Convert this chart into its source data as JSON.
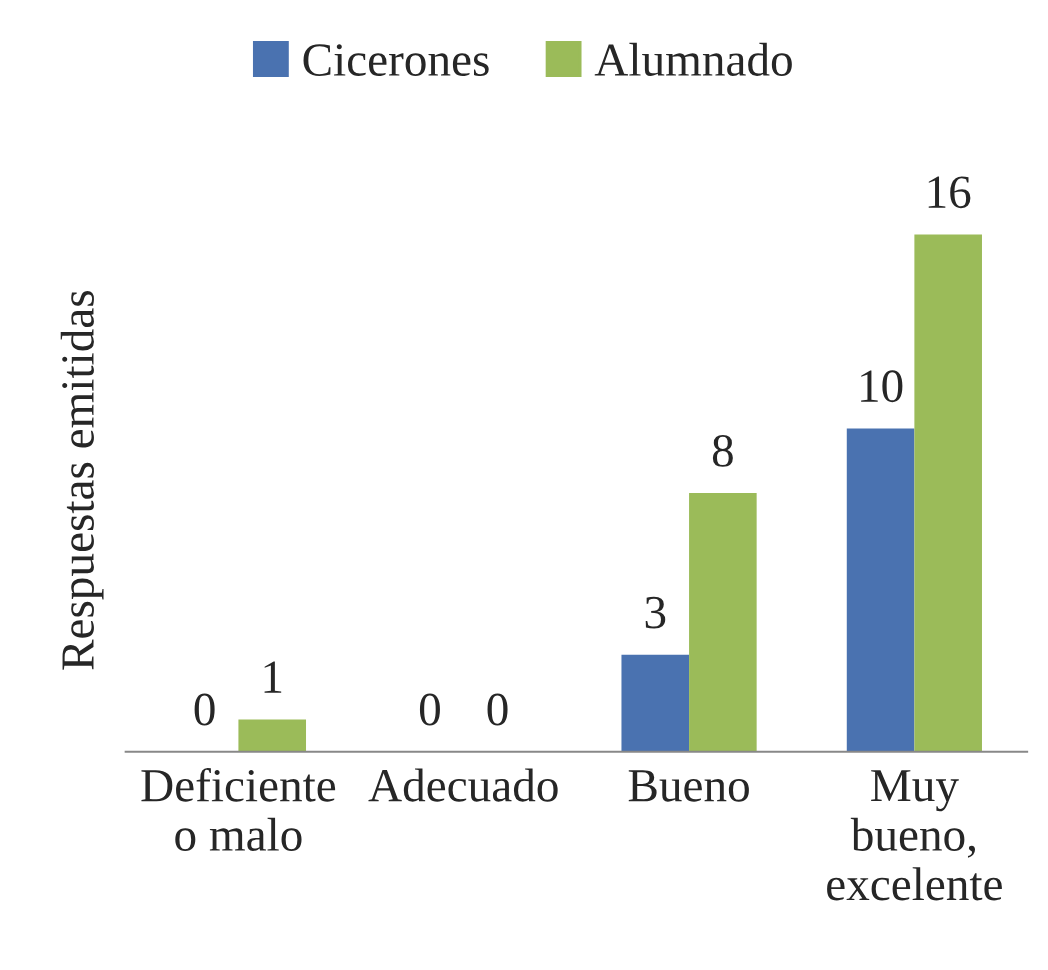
{
  "chart_data": {
    "type": "bar",
    "ylabel": "Respuestas emitidas",
    "categories": [
      "Deficiente\no malo",
      "Adecuado",
      "Bueno",
      "Muy\nbueno,\nexcelente"
    ],
    "series": [
      {
        "name": "Cicerones",
        "color": "#4a72b0",
        "values": [
          0,
          0,
          3,
          10
        ]
      },
      {
        "name": "Alumnado",
        "color": "#9bbb59",
        "values": [
          1,
          0,
          8,
          16
        ]
      }
    ],
    "data_labels": true,
    "legend": "top",
    "grid": false
  }
}
